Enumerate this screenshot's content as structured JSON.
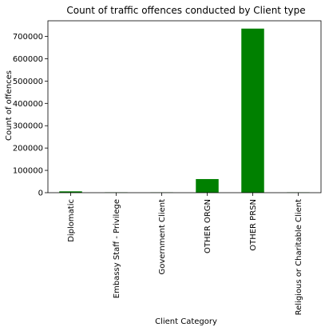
{
  "chart_data": {
    "type": "bar",
    "title": "Count of traffic offences conducted by Client type",
    "xlabel": "Client Category",
    "ylabel": "Count of offences",
    "categories": [
      "Diplomatic",
      "Embassy Staff - Privilege",
      "Government Client",
      "OTHER ORGN",
      "OTHER PRSN",
      "Religious or Charitable Client"
    ],
    "values": [
      6000,
      1500,
      1200,
      61000,
      735000,
      1500
    ],
    "yticks": [
      0,
      100000,
      200000,
      300000,
      400000,
      500000,
      600000,
      700000
    ],
    "ylim": [
      0,
      770000
    ],
    "bar_color": "#008000",
    "grid": false,
    "legend": "none"
  }
}
